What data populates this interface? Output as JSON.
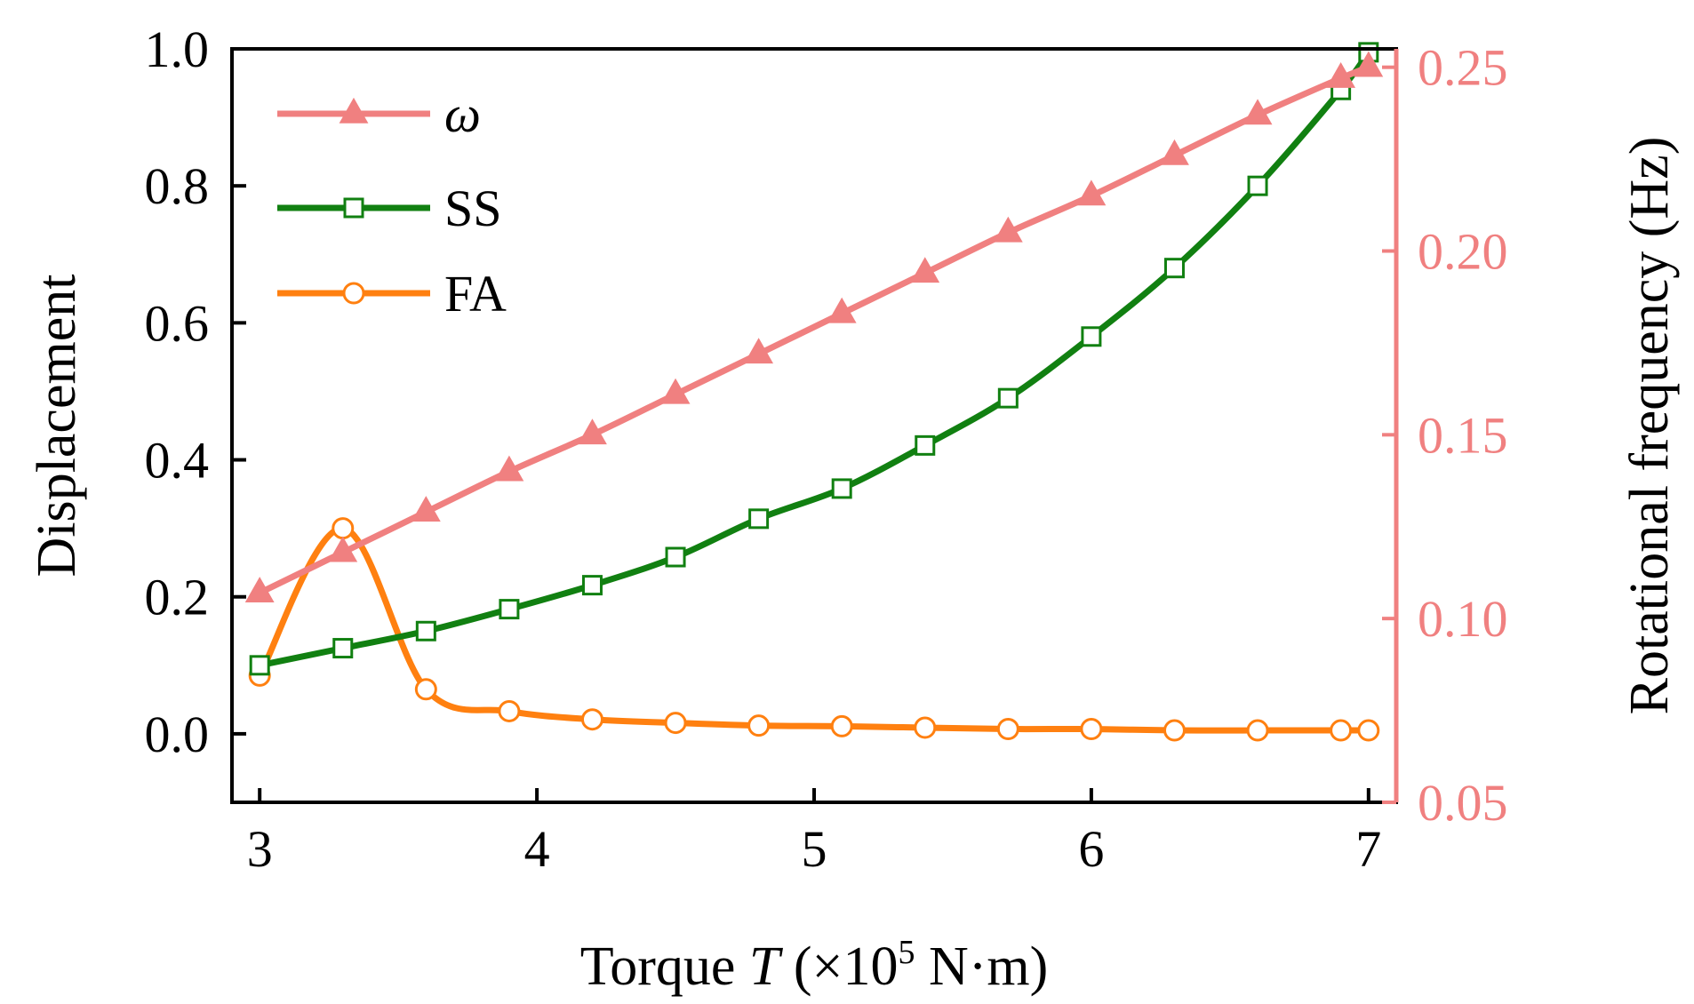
{
  "chart_data": {
    "type": "line",
    "title": "",
    "xlabel": {
      "prefix": "Torque ",
      "var": "T",
      "unit_open": " (×10",
      "exponent": "5",
      "unit_close": " N·m)"
    },
    "ylabel_left": "Displacement",
    "ylabel_right": "Rotational frequency (Hz)",
    "xlim": [
      2.9,
      7.1
    ],
    "ylim_left": [
      -0.1,
      1.0
    ],
    "ylim_right": [
      0.05,
      0.255
    ],
    "x_ticks": [
      3,
      4,
      5,
      6,
      7
    ],
    "x_tick_labels": [
      "3",
      "4",
      "5",
      "6",
      "7"
    ],
    "y_left_ticks": [
      0.0,
      0.2,
      0.4,
      0.6,
      0.8,
      1.0
    ],
    "y_left_tick_labels": [
      "0.0",
      "0.2",
      "0.4",
      "0.6",
      "0.8",
      "1.0"
    ],
    "y_right_ticks": [
      0.05,
      0.1,
      0.15,
      0.2,
      0.25
    ],
    "y_right_tick_labels": [
      "0.05",
      "0.10",
      "0.15",
      "0.20",
      "0.25"
    ],
    "legend_position": "top-left",
    "series": [
      {
        "name": "ω",
        "axis": "right",
        "color": "#f08080",
        "marker": "triangle",
        "x": [
          3.0,
          3.3,
          3.6,
          3.9,
          4.2,
          4.5,
          4.8,
          5.1,
          5.4,
          5.7,
          6.0,
          6.3,
          6.6,
          6.9,
          7.0
        ],
        "values": [
          0.107,
          0.118,
          0.129,
          0.14,
          0.15,
          0.161,
          0.172,
          0.183,
          0.194,
          0.205,
          0.215,
          0.226,
          0.237,
          0.247,
          0.25
        ]
      },
      {
        "name": "SS",
        "axis": "left",
        "color": "#118011",
        "marker": "square-open",
        "x": [
          3.0,
          3.3,
          3.6,
          3.9,
          4.2,
          4.5,
          4.8,
          5.1,
          5.4,
          5.7,
          6.0,
          6.3,
          6.6,
          6.9,
          7.0
        ],
        "values": [
          0.1,
          0.125,
          0.15,
          0.182,
          0.217,
          0.258,
          0.314,
          0.358,
          0.421,
          0.49,
          0.58,
          0.68,
          0.8,
          0.94,
          0.995
        ]
      },
      {
        "name": "FA",
        "axis": "left",
        "color": "#ff8010",
        "marker": "circle-open",
        "x": [
          3.0,
          3.3,
          3.6,
          3.9,
          4.2,
          4.5,
          4.8,
          5.1,
          5.4,
          5.7,
          6.0,
          6.3,
          6.6,
          6.9,
          7.0
        ],
        "values": [
          0.085,
          0.3,
          0.065,
          0.033,
          0.021,
          0.016,
          0.012,
          0.011,
          0.009,
          0.007,
          0.007,
          0.005,
          0.005,
          0.005,
          0.005
        ]
      }
    ]
  }
}
